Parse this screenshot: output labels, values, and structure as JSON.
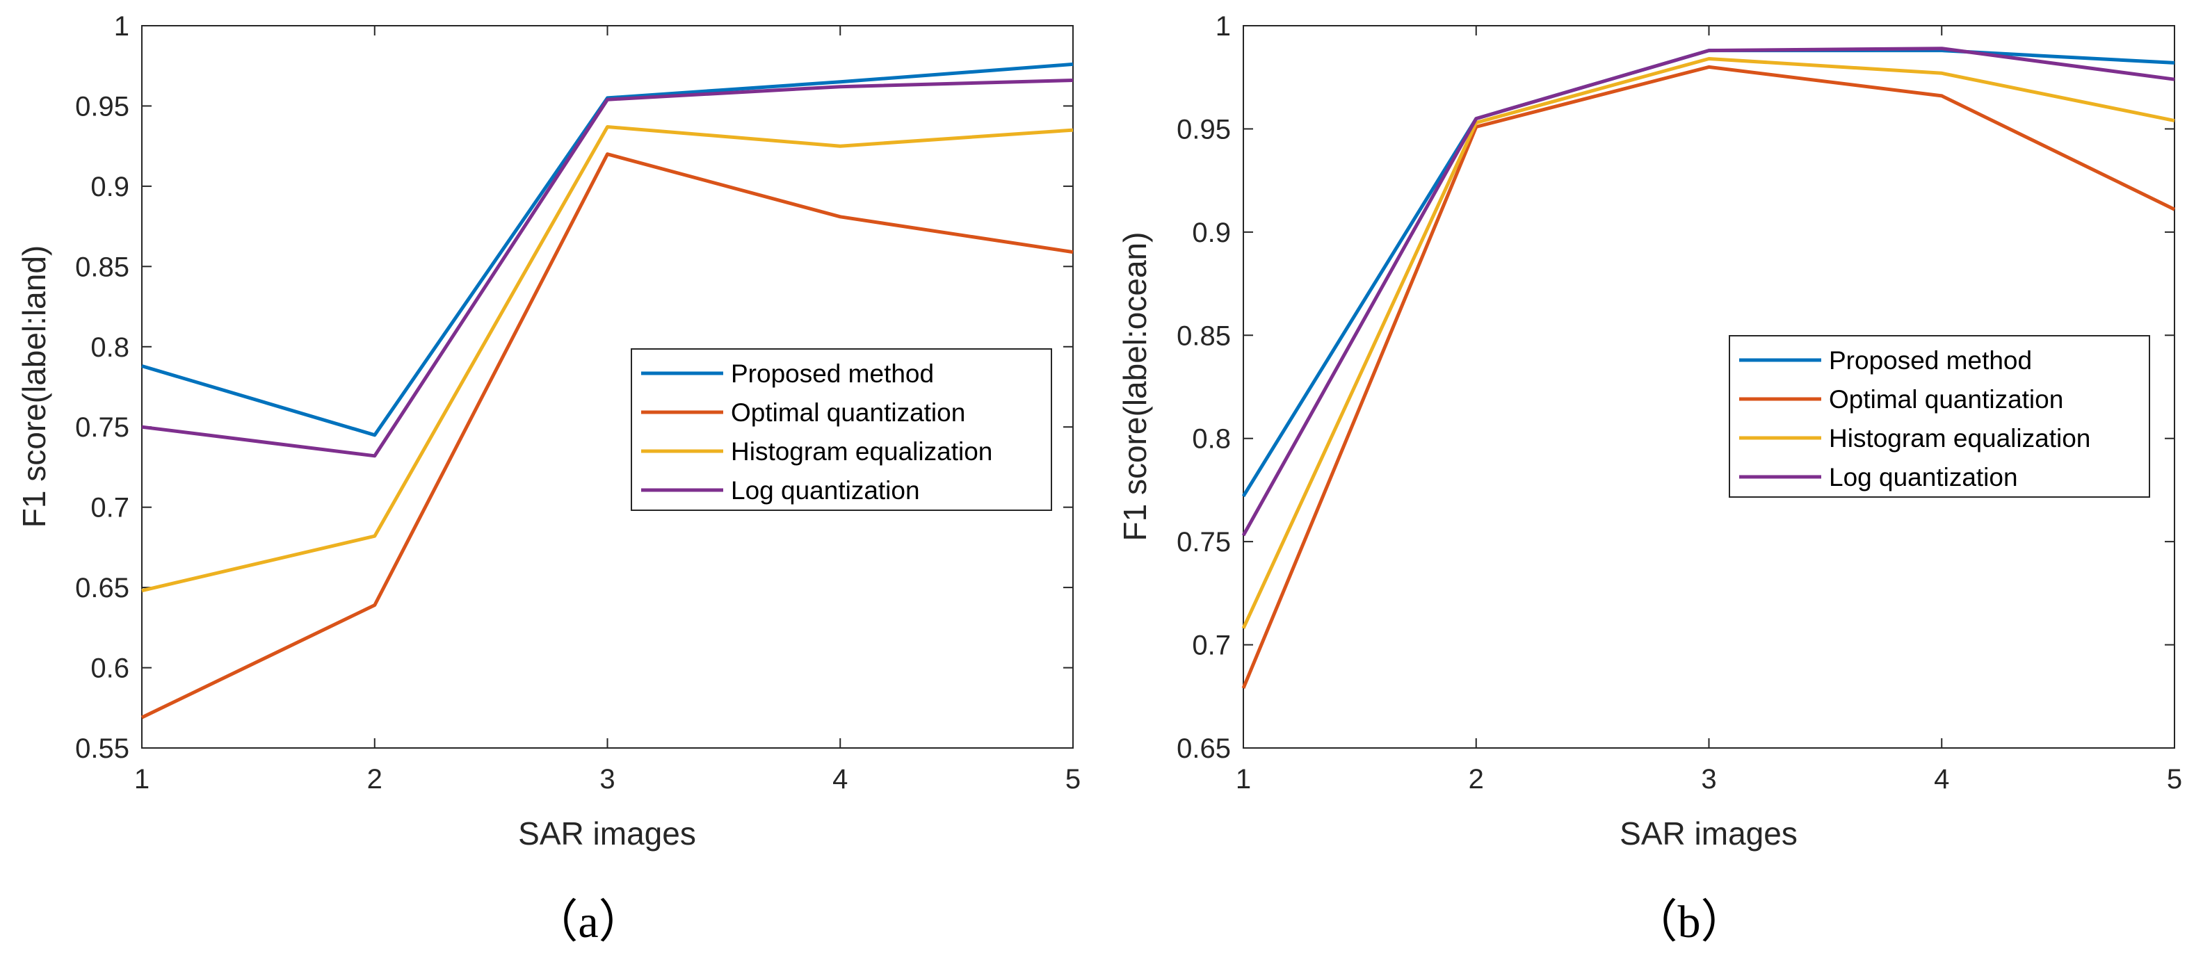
{
  "chart_data": [
    {
      "type": "line",
      "caption": "（a）",
      "xlabel": "SAR images",
      "ylabel": "F1 score(label:land)",
      "x": [
        1,
        2,
        3,
        4,
        5
      ],
      "xlim": [
        1,
        5
      ],
      "ylim": [
        0.55,
        1
      ],
      "xticks": [
        "1",
        "2",
        "3",
        "4",
        "5"
      ],
      "yticks": [
        "0.55",
        "0.6",
        "0.65",
        "0.7",
        "0.75",
        "0.8",
        "0.85",
        "0.9",
        "0.95",
        "1"
      ],
      "ytick_values": [
        0.55,
        0.6,
        0.65,
        0.7,
        0.75,
        0.8,
        0.85,
        0.9,
        0.95,
        1
      ],
      "grid": false,
      "legend_position": "center-right",
      "series": [
        {
          "name": "Proposed method",
          "color": "#0072BD",
          "values": [
            0.788,
            0.745,
            0.955,
            0.965,
            0.976
          ]
        },
        {
          "name": "Optimal quantization",
          "color": "#D95319",
          "values": [
            0.569,
            0.639,
            0.92,
            0.881,
            0.859
          ]
        },
        {
          "name": "Histogram equalization",
          "color": "#EDB120",
          "values": [
            0.648,
            0.682,
            0.937,
            0.925,
            0.935
          ]
        },
        {
          "name": "Log quantization",
          "color": "#7E2F8E",
          "values": [
            0.75,
            0.732,
            0.954,
            0.962,
            0.966
          ]
        }
      ]
    },
    {
      "type": "line",
      "caption": "（b）",
      "xlabel": "SAR images",
      "ylabel": "F1 score(label:ocean)",
      "x": [
        1,
        2,
        3,
        4,
        5
      ],
      "xlim": [
        1,
        5
      ],
      "ylim": [
        0.65,
        1
      ],
      "xticks": [
        "1",
        "2",
        "3",
        "4",
        "5"
      ],
      "yticks": [
        "0.65",
        "0.7",
        "0.75",
        "0.8",
        "0.85",
        "0.9",
        "0.95",
        "1"
      ],
      "ytick_values": [
        0.65,
        0.7,
        0.75,
        0.8,
        0.85,
        0.9,
        0.95,
        1
      ],
      "grid": false,
      "legend_position": "center-right",
      "series": [
        {
          "name": "Proposed method",
          "color": "#0072BD",
          "values": [
            0.772,
            0.955,
            0.988,
            0.988,
            0.982
          ]
        },
        {
          "name": "Optimal quantization",
          "color": "#D95319",
          "values": [
            0.679,
            0.951,
            0.98,
            0.966,
            0.911
          ]
        },
        {
          "name": "Histogram equalization",
          "color": "#EDB120",
          "values": [
            0.708,
            0.953,
            0.984,
            0.977,
            0.954
          ]
        },
        {
          "name": "Log quantization",
          "color": "#7E2F8E",
          "values": [
            0.753,
            0.955,
            0.988,
            0.989,
            0.974
          ]
        }
      ]
    }
  ]
}
